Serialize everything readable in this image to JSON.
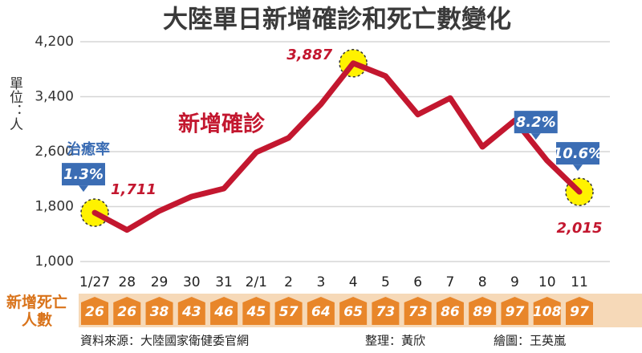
{
  "chart_data": {
    "type": "line",
    "title": "大陸單日新增確診和死亡數變化",
    "y_label": "單位：人",
    "categories": [
      "1/27",
      "28",
      "29",
      "30",
      "31",
      "2/1",
      "2",
      "3",
      "4",
      "5",
      "6",
      "7",
      "8",
      "9",
      "10",
      "11"
    ],
    "series": [
      {
        "name": "新增確診",
        "color": "#c3172f",
        "values": [
          1711,
          1460,
          1737,
          1946,
          2063,
          2590,
          2800,
          3290,
          3887,
          3700,
          3140,
          3380,
          2670,
          3055,
          2470,
          2015
        ],
        "value_labels": [
          "1,711",
          null,
          null,
          null,
          null,
          null,
          null,
          null,
          "3,887",
          null,
          null,
          null,
          null,
          null,
          null,
          "2,015"
        ]
      }
    ],
    "ylim": [
      1000,
      4200
    ],
    "yticks": [
      {
        "value": 1000,
        "label": "1,000"
      },
      {
        "value": 1800,
        "label": "1,800"
      },
      {
        "value": 2600,
        "label": "2,600"
      },
      {
        "value": 3400,
        "label": "3,400"
      },
      {
        "value": 4200,
        "label": "4,200"
      }
    ],
    "grid": true,
    "recovery_rate": {
      "title": "治癒率",
      "color": "#3b6db4",
      "values": [
        1.3,
        null,
        null,
        null,
        null,
        null,
        null,
        null,
        null,
        null,
        null,
        null,
        null,
        null,
        8.2,
        10.6
      ],
      "value_labels": [
        "1.3%",
        null,
        null,
        null,
        null,
        null,
        null,
        null,
        null,
        null,
        null,
        null,
        null,
        null,
        "8.2%",
        "10.6%"
      ]
    },
    "deaths": {
      "title": "新增死亡人數",
      "color": "#e8862a",
      "values": [
        26,
        26,
        38,
        43,
        46,
        45,
        57,
        64,
        65,
        73,
        73,
        86,
        89,
        97,
        108,
        97
      ]
    }
  },
  "footer": {
    "source": "資料來源：大陸國家衛健委官網",
    "editor": "整理：黃欣",
    "artist": "繪圖：王英嵐"
  }
}
